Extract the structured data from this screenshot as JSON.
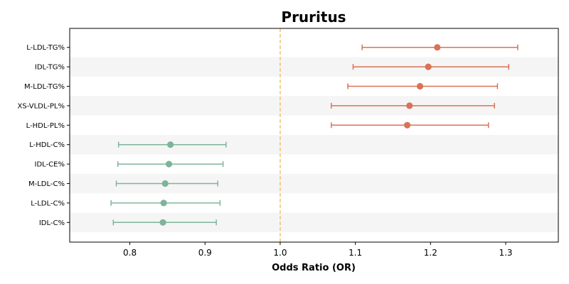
{
  "chart_data": {
    "type": "forest",
    "title": "Pruritus",
    "xlabel": "Odds Ratio (OR)",
    "xlim": [
      0.72,
      1.37
    ],
    "xticks": [
      0.8,
      0.9,
      1.0,
      1.1,
      1.2,
      1.3
    ],
    "xtick_labels": [
      "0.8",
      "0.9",
      "1.0",
      "1.1",
      "1.2",
      "1.3"
    ],
    "reference_line": 1.0,
    "rows": [
      {
        "label": "L-LDL-TG%",
        "or": 1.209,
        "lower": 1.109,
        "upper": 1.316,
        "group": "risk"
      },
      {
        "label": "IDL-TG%",
        "or": 1.197,
        "lower": 1.097,
        "upper": 1.304,
        "group": "risk"
      },
      {
        "label": "M-LDL-TG%",
        "or": 1.186,
        "lower": 1.09,
        "upper": 1.289,
        "group": "risk"
      },
      {
        "label": "XS-VLDL-PL%",
        "or": 1.172,
        "lower": 1.068,
        "upper": 1.285,
        "group": "risk"
      },
      {
        "label": "L-HDL-PL%",
        "or": 1.169,
        "lower": 1.068,
        "upper": 1.277,
        "group": "risk"
      },
      {
        "label": "L-HDL-C%",
        "or": 0.854,
        "lower": 0.785,
        "upper": 0.928,
        "group": "protective"
      },
      {
        "label": "IDL-CE%",
        "or": 0.852,
        "lower": 0.784,
        "upper": 0.924,
        "group": "protective"
      },
      {
        "label": "M-LDL-C%",
        "or": 0.847,
        "lower": 0.782,
        "upper": 0.917,
        "group": "protective"
      },
      {
        "label": "L-LDL-C%",
        "or": 0.845,
        "lower": 0.775,
        "upper": 0.92,
        "group": "protective"
      },
      {
        "label": "IDL-C%",
        "or": 0.844,
        "lower": 0.778,
        "upper": 0.915,
        "group": "protective"
      }
    ],
    "colors": {
      "risk": "#d97256",
      "protective": "#7fb49a",
      "reference_line": "#f0c36d",
      "band": "#f5f5f5"
    },
    "grid": false,
    "alternating_row_bands": true
  }
}
